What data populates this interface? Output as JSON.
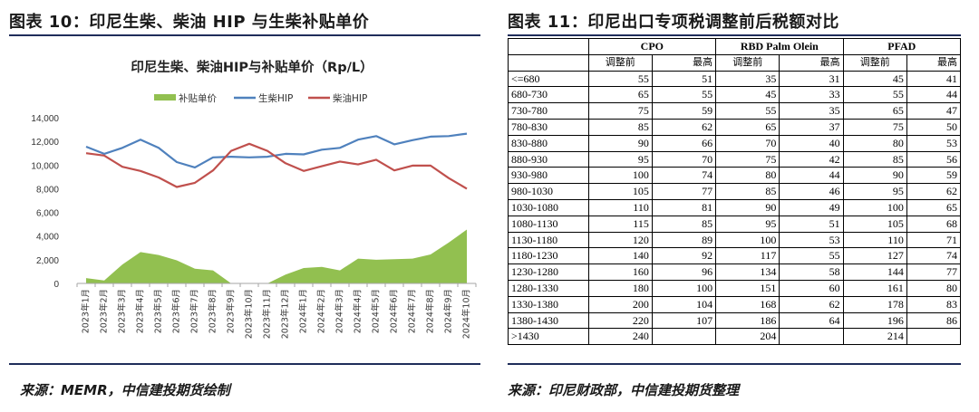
{
  "left_panel": {
    "figure_title": "图表 10：印尼生柴、柴油 HIP 与生柴补贴单价",
    "source": "来源：MEMR，中信建投期货绘制"
  },
  "right_panel": {
    "figure_title": "图表 11：印尼出口专项税调整前后税额对比",
    "source": "来源：印尼财政部，中信建投期货整理"
  },
  "colors": {
    "subsidy": "#92c050",
    "biodiesel_hip": "#4f81bd",
    "diesel_hip": "#c0504d",
    "rule": "#1f2d5a"
  },
  "chart_data": {
    "type": "line",
    "title": "印尼生柴、柴油HIP与补贴单价（Rp/L）",
    "categories": [
      "2023年1月",
      "2023年2月",
      "2023年3月",
      "2023年4月",
      "2023年5月",
      "2023年6月",
      "2023年7月",
      "2023年8月",
      "2023年9月",
      "2023年10月",
      "2023年11月",
      "2023年12月",
      "2024年1月",
      "2024年2月",
      "2024年3月",
      "2024年4月",
      "2024年5月",
      "2024年6月",
      "2024年7月",
      "2024年8月",
      "2024年9月",
      "2024年10月"
    ],
    "ylim": [
      0,
      14000
    ],
    "yticks": [
      "0",
      "2,000",
      "4,000",
      "6,000",
      "8,000",
      "10,000",
      "12,000",
      "14,000"
    ],
    "ytick_values": [
      0,
      2000,
      4000,
      6000,
      8000,
      10000,
      12000,
      14000
    ],
    "legend_position": "top",
    "grid": false,
    "series": [
      {
        "name": "补贴单价",
        "kind": "area",
        "values": [
          450,
          250,
          1600,
          2650,
          2400,
          1950,
          1250,
          1100,
          0,
          0,
          0,
          750,
          1300,
          1400,
          1100,
          2100,
          2000,
          2050,
          2100,
          2450,
          3450,
          4550
        ]
      },
      {
        "name": "生柴HIP",
        "kind": "line",
        "values": [
          11550,
          10950,
          11450,
          12150,
          11450,
          10250,
          9800,
          10650,
          10700,
          10650,
          10700,
          10950,
          10900,
          11300,
          11450,
          12150,
          12450,
          11750,
          12100,
          12400,
          12450,
          12650
        ]
      },
      {
        "name": "柴油HIP",
        "kind": "line",
        "values": [
          11000,
          10800,
          9850,
          9500,
          8950,
          8150,
          8500,
          9550,
          11200,
          11800,
          11200,
          10150,
          9500,
          9900,
          10300,
          10050,
          10450,
          9550,
          9950,
          9950,
          8900,
          8000
        ]
      }
    ]
  },
  "table": {
    "groups": [
      "CPO",
      "RBD Palm Olein",
      "PFAD"
    ],
    "subheaders": [
      "调整前",
      "最高",
      "调整前",
      "最高",
      "调整前",
      "最高"
    ],
    "rows": [
      [
        "<=680",
        "55",
        "51",
        "35",
        "31",
        "45",
        "41"
      ],
      [
        "680-730",
        "65",
        "55",
        "45",
        "33",
        "55",
        "44"
      ],
      [
        "730-780",
        "75",
        "59",
        "55",
        "35",
        "65",
        "47"
      ],
      [
        "780-830",
        "85",
        "62",
        "65",
        "37",
        "75",
        "50"
      ],
      [
        "830-880",
        "90",
        "66",
        "70",
        "40",
        "80",
        "53"
      ],
      [
        "880-930",
        "95",
        "70",
        "75",
        "42",
        "85",
        "56"
      ],
      [
        "930-980",
        "100",
        "74",
        "80",
        "44",
        "90",
        "59"
      ],
      [
        "980-1030",
        "105",
        "77",
        "85",
        "46",
        "95",
        "62"
      ],
      [
        "1030-1080",
        "110",
        "81",
        "90",
        "49",
        "100",
        "65"
      ],
      [
        "1080-1130",
        "115",
        "85",
        "95",
        "51",
        "105",
        "68"
      ],
      [
        "1130-1180",
        "120",
        "89",
        "100",
        "53",
        "110",
        "71"
      ],
      [
        "1180-1230",
        "140",
        "92",
        "117",
        "55",
        "127",
        "74"
      ],
      [
        "1230-1280",
        "160",
        "96",
        "134",
        "58",
        "144",
        "77"
      ],
      [
        "1280-1330",
        "180",
        "100",
        "151",
        "60",
        "161",
        "80"
      ],
      [
        "1330-1380",
        "200",
        "104",
        "168",
        "62",
        "178",
        "83"
      ],
      [
        "1380-1430",
        "220",
        "107",
        "186",
        "64",
        "196",
        "86"
      ],
      [
        ">1430",
        "240",
        "",
        "204",
        "",
        "214",
        ""
      ]
    ]
  }
}
